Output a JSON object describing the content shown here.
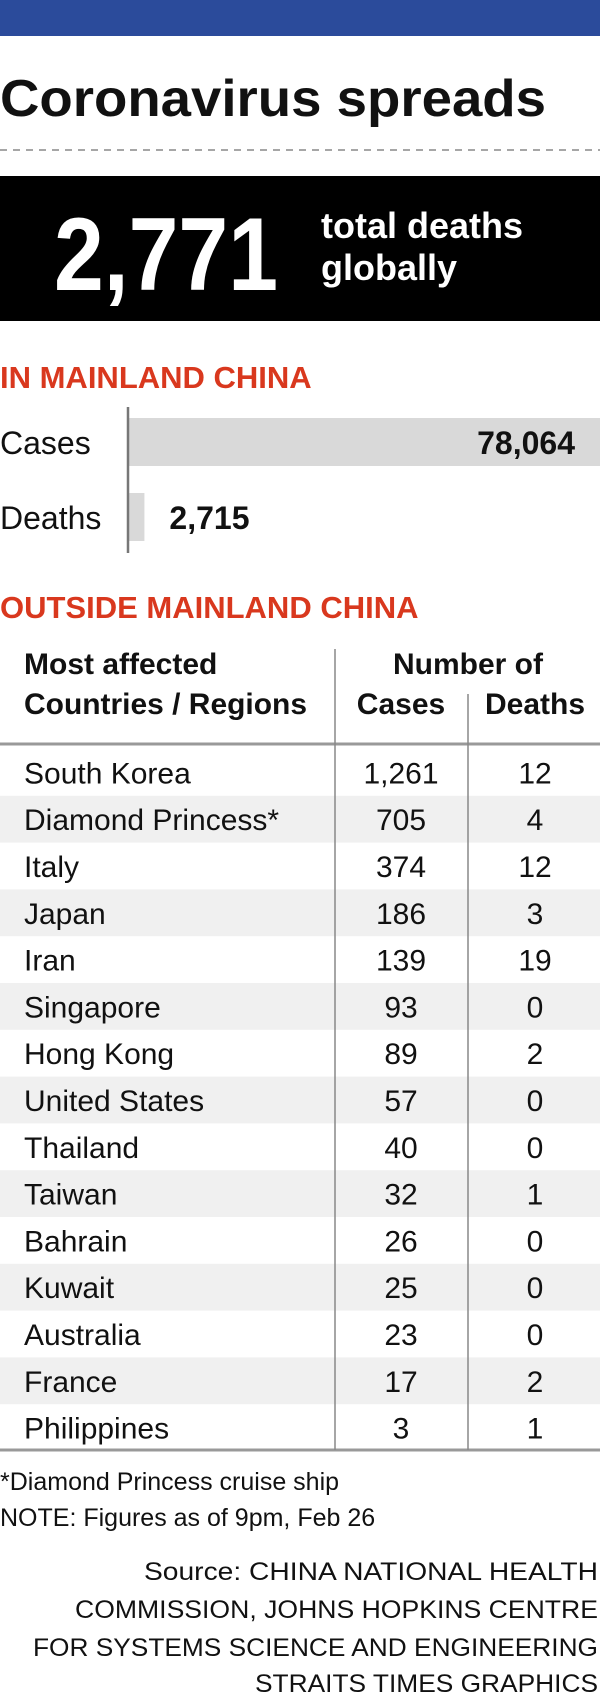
{
  "header": {
    "title": "Coronavirus spreads"
  },
  "headline": {
    "value": "2,771",
    "label_lines": [
      "total deaths",
      "globally"
    ]
  },
  "chart_data": {
    "type": "bar",
    "title": "IN MAINLAND CHINA",
    "categories": [
      "Cases",
      "Deaths"
    ],
    "values": [
      78064,
      2715
    ],
    "value_labels": [
      "78,064",
      "2,715"
    ],
    "color": "#d9d9d9"
  },
  "table": {
    "title": "OUTSIDE MAINLAND CHINA",
    "header_label_lines": [
      "Most affected",
      "Countries / Regions"
    ],
    "header_group": "Number of",
    "columns": [
      "Cases",
      "Deaths"
    ],
    "rows": [
      [
        "South Korea",
        "1,261",
        "12"
      ],
      [
        "Diamond Princess*",
        "705",
        "4"
      ],
      [
        "Italy",
        "374",
        "12"
      ],
      [
        "Japan",
        "186",
        "3"
      ],
      [
        "Iran",
        "139",
        "19"
      ],
      [
        "Singapore",
        "93",
        "0"
      ],
      [
        "Hong Kong",
        "89",
        "2"
      ],
      [
        "United States",
        "57",
        "0"
      ],
      [
        "Thailand",
        "40",
        "0"
      ],
      [
        "Taiwan",
        "32",
        "1"
      ],
      [
        "Bahrain",
        "26",
        "0"
      ],
      [
        "Kuwait",
        "25",
        "0"
      ],
      [
        "Australia",
        "23",
        "0"
      ],
      [
        "France",
        "17",
        "2"
      ],
      [
        "Philippines",
        "3",
        "1"
      ]
    ]
  },
  "notes": [
    "*Diamond Princess cruise ship",
    "NOTE: Figures as of 9pm, Feb 26"
  ],
  "source_lines": [
    "Source: CHINA NATIONAL HEALTH",
    "COMMISSION, JOHNS HOPKINS CENTRE",
    "FOR SYSTEMS SCIENCE AND ENGINEERING",
    "STRAITS TIMES GRAPHICS"
  ]
}
